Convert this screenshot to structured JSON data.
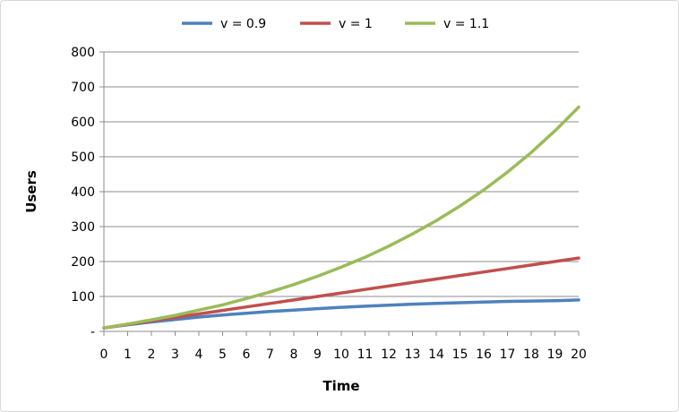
{
  "chart_data": {
    "type": "line",
    "title": "",
    "xlabel": "Time",
    "ylabel": "Users",
    "x": [
      0,
      1,
      2,
      3,
      4,
      5,
      6,
      7,
      8,
      9,
      10,
      11,
      12,
      13,
      14,
      15,
      16,
      17,
      18,
      19,
      20
    ],
    "xlim": [
      0,
      20
    ],
    "ylim": [
      0,
      800
    ],
    "y_ticks": [
      {
        "value": 0,
        "label": "-"
      },
      {
        "value": 100,
        "label": "100"
      },
      {
        "value": 200,
        "label": "200"
      },
      {
        "value": 300,
        "label": "300"
      },
      {
        "value": 400,
        "label": "400"
      },
      {
        "value": 500,
        "label": "500"
      },
      {
        "value": 600,
        "label": "600"
      },
      {
        "value": 700,
        "label": "700"
      },
      {
        "value": 800,
        "label": "800"
      }
    ],
    "x_tick_labels": [
      "0",
      "1",
      "2",
      "3",
      "4",
      "5",
      "6",
      "7",
      "8",
      "9",
      "10",
      "11",
      "12",
      "13",
      "14",
      "15",
      "16",
      "17",
      "18",
      "19",
      "20"
    ],
    "grid": "horizontal",
    "legend_position": "top",
    "series": [
      {
        "name": "v = 0.9",
        "color": "#4f81bd",
        "values": [
          10,
          19,
          27,
          34,
          41,
          47,
          52,
          57,
          61,
          65,
          69,
          72,
          75,
          78,
          80,
          82,
          84,
          86,
          87,
          88,
          90
        ]
      },
      {
        "name": "v = 1",
        "color": "#c0504d",
        "values": [
          10,
          20,
          30,
          40,
          50,
          60,
          70,
          80,
          90,
          100,
          110,
          120,
          130,
          140,
          150,
          160,
          170,
          180,
          190,
          200,
          210
        ]
      },
      {
        "name": "v = 1.1",
        "color": "#9bbb59",
        "values": [
          10,
          21,
          33,
          46,
          61,
          76,
          94,
          113,
          134,
          158,
          184,
          212,
          244,
          279,
          317,
          359,
          405,
          456,
          512,
          574,
          642
        ]
      }
    ]
  }
}
